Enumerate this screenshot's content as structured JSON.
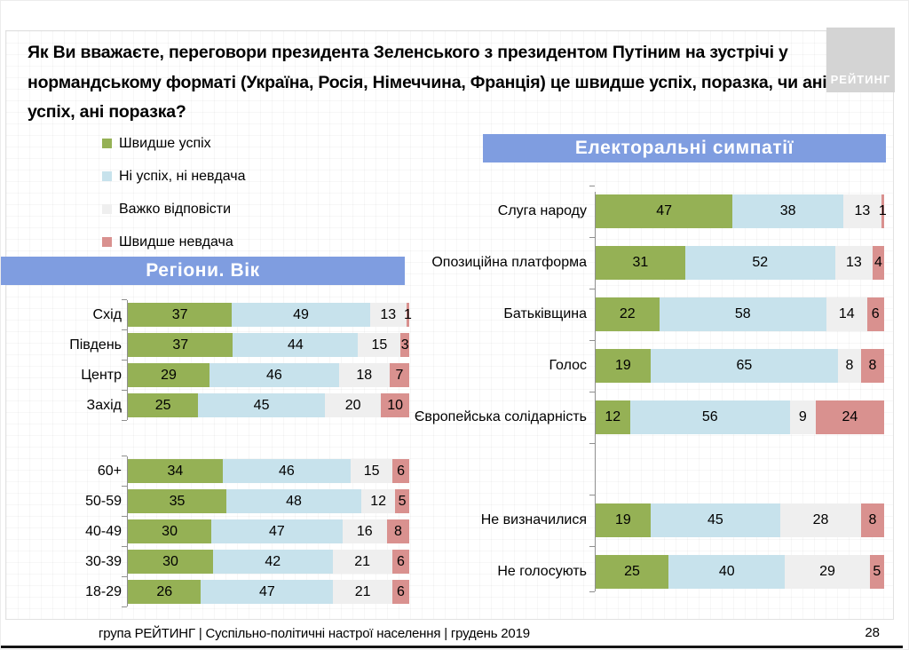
{
  "title": "Як Ви вважаєте, переговори президента Зеленського з президентом Путіним на зустрічі у нормандському форматі (Україна, Росія, Німеччина, Франція) це швидше успіх, поразка, чи ані успіх, ані поразка?",
  "logo_text": "РЕЙТИНГ",
  "sections": {
    "left_header": "Регіони. Вік",
    "right_header": "Електоральні симпатії"
  },
  "legend": {
    "items": [
      {
        "key": "success",
        "label": "Швидше успіх",
        "color": "#95B155"
      },
      {
        "key": "neither",
        "label": "Ні успіх, ні невдача",
        "color": "#C7E2EC"
      },
      {
        "key": "hard-to-answer",
        "label": "Важко відповісти",
        "color": "#EFEFEF"
      },
      {
        "key": "failure",
        "label": "Швидше невдача",
        "color": "#D9918F"
      }
    ]
  },
  "colors": {
    "banner_blue": "#7F9DE0",
    "logo_gray": "#D4D4D4",
    "success_green": "#95B155",
    "neither_blue": "#C7E2EC",
    "hard_gray": "#EFEFEF",
    "failure_rose": "#D9918F"
  },
  "chart_data": [
    {
      "type": "bar",
      "stacked": true,
      "orientation": "horizontal",
      "units": "percent",
      "title": "Регіони. Вік",
      "xlim": [
        0,
        100
      ],
      "series_names": [
        "Швидше успіх",
        "Ні успіх, ні невдача",
        "Важко відповісти",
        "Швидше невдача"
      ],
      "series_keys": [
        "success",
        "neither",
        "hard-to-answer",
        "failure"
      ],
      "colors": [
        "#95B155",
        "#C7E2EC",
        "#EFEFEF",
        "#D9918F"
      ],
      "groups": [
        {
          "categories": [
            "Схід",
            "Південь",
            "Центр",
            "Захід"
          ],
          "rows": [
            [
              37,
              49,
              13,
              1
            ],
            [
              37,
              44,
              15,
              3
            ],
            [
              29,
              46,
              18,
              7
            ],
            [
              25,
              45,
              20,
              10
            ]
          ]
        },
        {
          "categories": [
            "60+",
            "50-59",
            "40-49",
            "30-39",
            "18-29"
          ],
          "rows": [
            [
              34,
              46,
              15,
              6
            ],
            [
              35,
              48,
              12,
              5
            ],
            [
              30,
              47,
              16,
              8
            ],
            [
              30,
              42,
              21,
              6
            ],
            [
              26,
              47,
              21,
              6
            ]
          ]
        }
      ]
    },
    {
      "type": "bar",
      "stacked": true,
      "orientation": "horizontal",
      "units": "percent",
      "title": "Електоральні симпатії",
      "xlim": [
        0,
        100
      ],
      "series_names": [
        "Швидше успіх",
        "Ні успіх, ні невдача",
        "Важко відповісти",
        "Швидше невдача"
      ],
      "series_keys": [
        "success",
        "neither",
        "hard-to-answer",
        "failure"
      ],
      "colors": [
        "#95B155",
        "#C7E2EC",
        "#EFEFEF",
        "#D9918F"
      ],
      "groups": [
        {
          "categories": [
            "Слуга народу",
            "Опозиційна платформа",
            "Батьківщина",
            "Голос",
            "Європейська солідарність",
            "",
            "Не визначилися",
            "Не голосують"
          ],
          "rows": [
            [
              47,
              38,
              13,
              1
            ],
            [
              31,
              52,
              13,
              4
            ],
            [
              22,
              58,
              14,
              6
            ],
            [
              19,
              65,
              8,
              8
            ],
            [
              12,
              56,
              9,
              24
            ],
            null,
            [
              19,
              45,
              28,
              8
            ],
            [
              25,
              40,
              29,
              5
            ]
          ]
        }
      ]
    }
  ],
  "footer": {
    "text": "група РЕЙТИНГ | Суспільно-політичні настрої населення  | грудень 2019",
    "page": "28"
  }
}
